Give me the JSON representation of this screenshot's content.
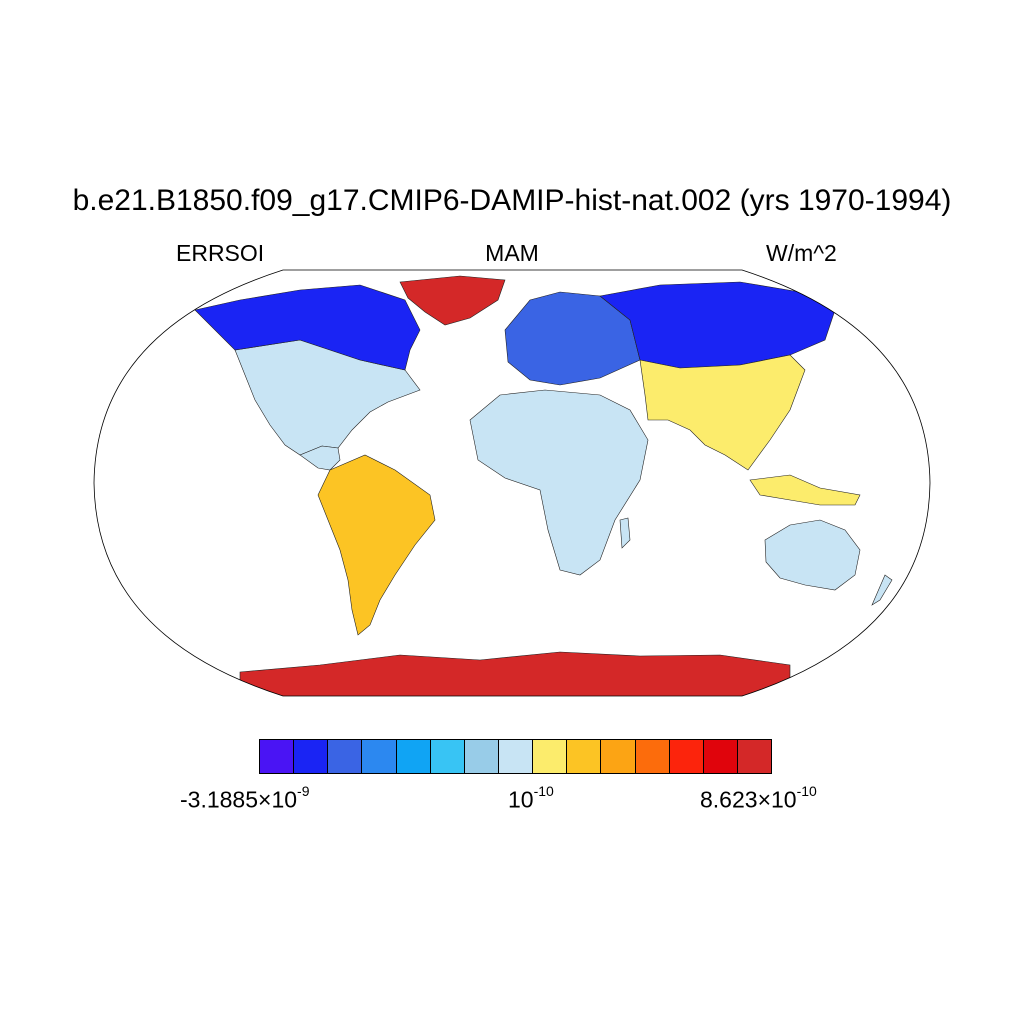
{
  "title": "b.e21.B1850.f09_g17.CMIP6-DAMIP-hist-nat.002 (yrs 1970-1994)",
  "subtitle": {
    "left": "ERRSOI",
    "center": "MAM",
    "right": "W/m^2"
  },
  "colorbar": {
    "colors": [
      "#4a14f4",
      "#1a24f4",
      "#3a64e4",
      "#2c88f0",
      "#10a4f4",
      "#38c4f4",
      "#98cce8",
      "#c8e4f4",
      "#fcec6c",
      "#fcc424",
      "#fca414",
      "#fc6c0c",
      "#fc240c",
      "#e0040c",
      "#d42828"
    ],
    "labels": {
      "left": {
        "mantissa": "-3.1885",
        "times": "×",
        "base": "10",
        "exp": "-9"
      },
      "mid": {
        "base": "10",
        "exp": "-10"
      },
      "right": {
        "mantissa": "8.623",
        "times": "×",
        "base": "10",
        "exp": "-10"
      }
    }
  },
  "map": {
    "projection": "Robinson",
    "variable": "ERRSOI",
    "season": "MAM",
    "units": "W/m^2",
    "regions": [
      {
        "region": "North America (north)",
        "level": "strongly negative",
        "color": "#1a24f4"
      },
      {
        "region": "North America (south)",
        "level": "slightly positive",
        "color": "#c8e4f4"
      },
      {
        "region": "Greenland",
        "level": "maximum positive",
        "color": "#d42828"
      },
      {
        "region": "South America",
        "level": "slightly positive",
        "color": "#fcc424"
      },
      {
        "region": "Europe",
        "level": "negative",
        "color": "#3a64e4"
      },
      {
        "region": "Africa",
        "level": "near zero to positive",
        "color": "#c8e4f4"
      },
      {
        "region": "Northern Asia",
        "level": "strongly negative",
        "color": "#1a24f4"
      },
      {
        "region": "Southern Asia",
        "level": "near zero to positive",
        "color": "#fcec6c"
      },
      {
        "region": "Australia",
        "level": "near zero to positive",
        "color": "#c8e4f4"
      },
      {
        "region": "Antarctica",
        "level": "maximum positive",
        "color": "#d42828"
      }
    ]
  }
}
